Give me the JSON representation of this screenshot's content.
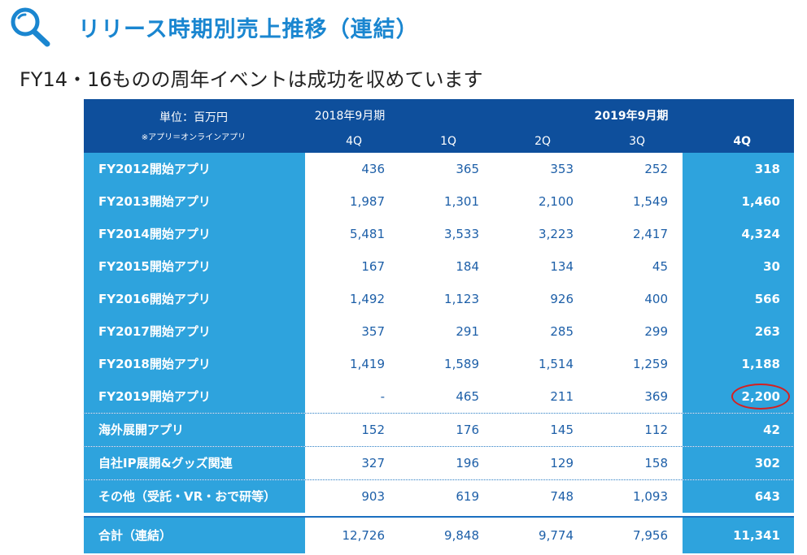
{
  "header": {
    "title": "リリース時期別売上推移（連結）",
    "subtitle": "FY14・16ものの周年イベントは成功を収めています"
  },
  "table": {
    "unit_label": "単位：百万円",
    "note": "※アプリ＝オンラインアプリ",
    "period1": "2018年9月期",
    "period2": "2019年9月期",
    "quarters": [
      "4Q",
      "1Q",
      "2Q",
      "3Q",
      "4Q"
    ],
    "rows": [
      {
        "label": "FY2012開始アプリ",
        "values": [
          "436",
          "365",
          "353",
          "252",
          "318"
        ]
      },
      {
        "label": "FY2013開始アプリ",
        "values": [
          "1,987",
          "1,301",
          "2,100",
          "1,549",
          "1,460"
        ]
      },
      {
        "label": "FY2014開始アプリ",
        "values": [
          "5,481",
          "3,533",
          "3,223",
          "2,417",
          "4,324"
        ]
      },
      {
        "label": "FY2015開始アプリ",
        "values": [
          "167",
          "184",
          "134",
          "45",
          "30"
        ]
      },
      {
        "label": "FY2016開始アプリ",
        "values": [
          "1,492",
          "1,123",
          "926",
          "400",
          "566"
        ]
      },
      {
        "label": "FY2017開始アプリ",
        "values": [
          "357",
          "291",
          "285",
          "299",
          "263"
        ]
      },
      {
        "label": "FY2018開始アプリ",
        "values": [
          "1,419",
          "1,589",
          "1,514",
          "1,259",
          "1,188"
        ]
      },
      {
        "label": "FY2019開始アプリ",
        "values": [
          "-",
          "465",
          "211",
          "369",
          "2,200"
        ]
      },
      {
        "label": "海外展開アプリ",
        "values": [
          "152",
          "176",
          "145",
          "112",
          "42"
        ]
      },
      {
        "label": "自社IP展開&グッズ関連",
        "values": [
          "327",
          "196",
          "129",
          "158",
          "302"
        ]
      },
      {
        "label": "その他（受託・VR・おで研等）",
        "values": [
          "903",
          "619",
          "748",
          "1,093",
          "643"
        ]
      }
    ],
    "total": {
      "label": "合計（連結）",
      "values": [
        "12,726",
        "9,848",
        "9,774",
        "7,956",
        "11,341"
      ]
    }
  },
  "colors": {
    "title": "#1a86d0",
    "header_bg": "#0e4f9c",
    "label_bg": "#2ea3dd",
    "value_text": "#1d5fa8",
    "highlight_circle": "#d62020"
  }
}
